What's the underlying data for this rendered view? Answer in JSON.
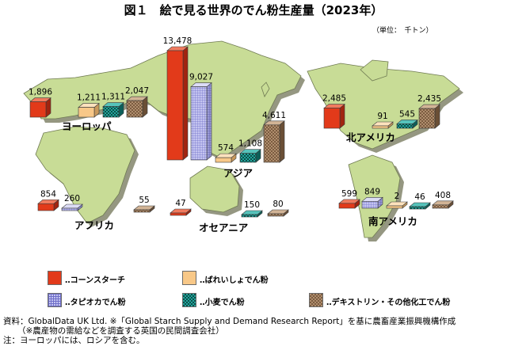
{
  "title": "図１　絵で見る世界のでん粉生産量（2023年）",
  "unit_note": "（単位：　千トン）",
  "colors": {
    "corn_starch": "#e23a1a",
    "tapioca_starch": "#b9b9ea",
    "potato_starch": "#f8c888",
    "wheat_starch": "#1f9e96",
    "dextrin_other": "#a8876a",
    "continent_fill": "#c8dc96",
    "continent_shadow": "#8a8c74"
  },
  "legend": [
    {
      "key": "corn",
      "label": "‥コーンスターチ",
      "color": "#e23a1a",
      "pattern": "solid"
    },
    {
      "key": "potato",
      "label": "‥ばれいしょでん粉",
      "color": "#f8c888",
      "pattern": "solid"
    },
    {
      "key": "tapioca",
      "label": "‥タピオカでん粉",
      "color": "#b9b9ea",
      "pattern": "grid"
    },
    {
      "key": "wheat",
      "label": "‥小麦でん粉",
      "color": "#1f9e96",
      "pattern": "dots"
    },
    {
      "key": "dextrin",
      "label": "‥デキストリン・その他化工でん粉",
      "color": "#a8876a",
      "pattern": "dots"
    }
  ],
  "chart_data": {
    "type": "bar",
    "title": "図１　絵で見る世界のでん粉生産量（2023年）",
    "unit": "千トン",
    "series_names": [
      "コーンスターチ",
      "タピオカでん粉",
      "ばれいしょでん粉",
      "小麦でん粉",
      "デキストリン・その他化工でん粉"
    ],
    "regions": [
      {
        "name": "ヨーロッパ",
        "values": {
          "corn": 1896,
          "potato": 1211,
          "wheat": 1311,
          "dextrin": 2047
        }
      },
      {
        "name": "アジア",
        "values": {
          "corn": 13478,
          "tapioca": 9027,
          "potato": 574,
          "wheat": 1108,
          "dextrin": 4611
        }
      },
      {
        "name": "北アメリカ",
        "values": {
          "corn": 2485,
          "potato": 91,
          "wheat": 545,
          "dextrin": 2435
        }
      },
      {
        "name": "アフリカ",
        "values": {
          "corn": 854,
          "tapioca": 260,
          "dextrin": 55
        }
      },
      {
        "name": "オセアニア",
        "values": {
          "corn": 47,
          "wheat": 150,
          "dextrin": 80
        }
      },
      {
        "name": "南アメリカ",
        "values": {
          "corn": 599,
          "tapioca": 849,
          "potato": 2,
          "wheat": 46,
          "dextrin": 408
        }
      }
    ]
  },
  "source": {
    "line1": "資料：GlobalData UK Ltd. ※「Global Starch Supply and Demand Research Report」を基に農畜産業振興機構作成",
    "line2": "（※農産物の需給などを調査する英国の民間調査会社）",
    "line3": "注：ヨーロッパには、ロシアを含む。"
  }
}
